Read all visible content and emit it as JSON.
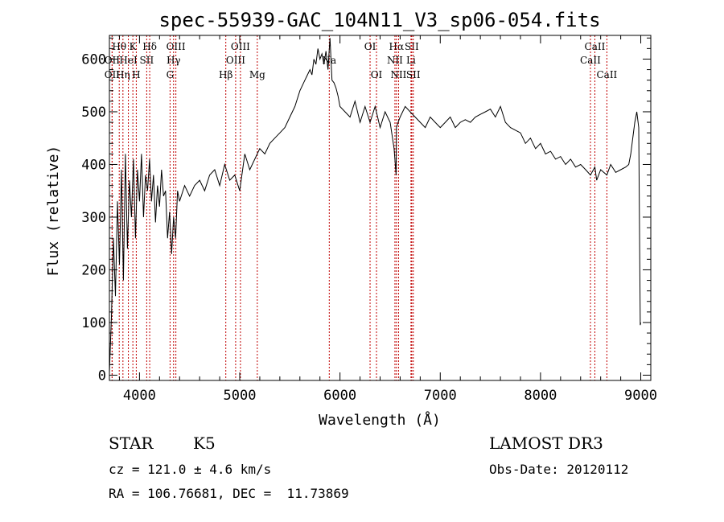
{
  "chart_data": {
    "type": "line",
    "title": "spec-55939-GAC_104N11_V3_sp06-054.fits",
    "xlabel": "Wavelength (Å)",
    "ylabel": "Flux (relative)",
    "xlim": [
      3700,
      9100
    ],
    "ylim": [
      -10,
      645
    ],
    "xticks": [
      4000,
      5000,
      6000,
      7000,
      8000,
      9000
    ],
    "yticks": [
      0,
      100,
      200,
      300,
      400,
      500,
      600
    ],
    "grid": false,
    "series": [
      {
        "name": "flux",
        "color": "#000000",
        "x": [
          3700,
          3720,
          3740,
          3760,
          3780,
          3800,
          3820,
          3840,
          3860,
          3880,
          3900,
          3920,
          3940,
          3960,
          3980,
          4000,
          4020,
          4040,
          4060,
          4080,
          4100,
          4120,
          4140,
          4160,
          4180,
          4200,
          4220,
          4240,
          4260,
          4280,
          4300,
          4320,
          4340,
          4360,
          4380,
          4400,
          4450,
          4500,
          4550,
          4600,
          4650,
          4700,
          4750,
          4800,
          4850,
          4900,
          4950,
          5000,
          5050,
          5100,
          5150,
          5200,
          5250,
          5300,
          5350,
          5400,
          5450,
          5500,
          5550,
          5600,
          5650,
          5700,
          5720,
          5740,
          5760,
          5780,
          5800,
          5820,
          5840,
          5860,
          5880,
          5900,
          5920,
          5940,
          5960,
          5980,
          6000,
          6050,
          6100,
          6150,
          6200,
          6250,
          6300,
          6350,
          6400,
          6450,
          6500,
          6540,
          6560,
          6563,
          6580,
          6600,
          6650,
          6700,
          6750,
          6800,
          6850,
          6900,
          6950,
          7000,
          7050,
          7100,
          7150,
          7200,
          7250,
          7300,
          7350,
          7400,
          7450,
          7500,
          7550,
          7600,
          7650,
          7700,
          7750,
          7800,
          7850,
          7900,
          7950,
          8000,
          8050,
          8100,
          8150,
          8200,
          8250,
          8300,
          8350,
          8400,
          8450,
          8498,
          8542,
          8560,
          8600,
          8662,
          8700,
          8750,
          8800,
          8850,
          8880,
          8900,
          8920,
          8940,
          8960,
          8980,
          8995,
          9000
        ],
        "values": [
          5,
          110,
          260,
          150,
          330,
          210,
          390,
          180,
          420,
          240,
          370,
          300,
          410,
          260,
          390,
          330,
          420,
          300,
          380,
          350,
          410,
          330,
          380,
          290,
          360,
          320,
          390,
          340,
          350,
          260,
          310,
          230,
          300,
          260,
          350,
          330,
          360,
          340,
          360,
          370,
          350,
          380,
          390,
          360,
          400,
          370,
          380,
          350,
          420,
          390,
          410,
          430,
          420,
          440,
          450,
          460,
          470,
          490,
          510,
          540,
          560,
          580,
          570,
          600,
          590,
          620,
          600,
          610,
          590,
          615,
          580,
          640,
          560,
          555,
          545,
          530,
          510,
          500,
          490,
          520,
          480,
          510,
          480,
          510,
          470,
          500,
          480,
          430,
          380,
          470,
          480,
          490,
          510,
          500,
          490,
          480,
          470,
          490,
          480,
          470,
          480,
          490,
          470,
          480,
          485,
          480,
          490,
          495,
          500,
          505,
          490,
          510,
          480,
          470,
          465,
          460,
          440,
          450,
          430,
          440,
          420,
          425,
          410,
          415,
          400,
          410,
          395,
          400,
          390,
          380,
          395,
          370,
          390,
          380,
          400,
          385,
          390,
          395,
          400,
          420,
          450,
          480,
          500,
          470,
          95,
          100
        ]
      }
    ],
    "spectral_lines": [
      {
        "name": "Hθ",
        "wavelength": 3798,
        "row": 1
      },
      {
        "name": "OII",
        "wavelength": 3727,
        "row": 2
      },
      {
        "name": "OII",
        "wavelength": 3727,
        "row": 3
      },
      {
        "name": "Hη",
        "wavelength": 3835,
        "row": 3
      },
      {
        "name": "K",
        "wavelength": 3934,
        "row": 1
      },
      {
        "name": "HeI",
        "wavelength": 3889,
        "row": 2
      },
      {
        "name": "H",
        "wavelength": 3968,
        "row": 3
      },
      {
        "name": "SII",
        "wavelength": 4072,
        "row": 2
      },
      {
        "name": "Hδ",
        "wavelength": 4102,
        "row": 1
      },
      {
        "name": "OIII",
        "wavelength": 4363,
        "row": 1
      },
      {
        "name": "Hγ",
        "wavelength": 4340,
        "row": 2
      },
      {
        "name": "G",
        "wavelength": 4305,
        "row": 3
      },
      {
        "name": "Hβ",
        "wavelength": 4861,
        "row": 3
      },
      {
        "name": "OIII",
        "wavelength": 5007,
        "row": 1
      },
      {
        "name": "OIII",
        "wavelength": 4959,
        "row": 2
      },
      {
        "name": "Mg",
        "wavelength": 5175,
        "row": 3
      },
      {
        "name": "Na",
        "wavelength": 5893,
        "row": 2
      },
      {
        "name": "OI",
        "wavelength": 6300,
        "row": 1
      },
      {
        "name": "OI",
        "wavelength": 6364,
        "row": 3
      },
      {
        "name": "Hα",
        "wavelength": 6563,
        "row": 1
      },
      {
        "name": "NII",
        "wavelength": 6548,
        "row": 2
      },
      {
        "name": "NII",
        "wavelength": 6584,
        "row": 3
      },
      {
        "name": "SII",
        "wavelength": 6716,
        "row": 1
      },
      {
        "name": "Li",
        "wavelength": 6708,
        "row": 2
      },
      {
        "name": "SII",
        "wavelength": 6731,
        "row": 3
      },
      {
        "name": "CaII",
        "wavelength": 8542,
        "row": 1
      },
      {
        "name": "CaII",
        "wavelength": 8498,
        "row": 2
      },
      {
        "name": "CaII",
        "wavelength": 8662,
        "row": 3
      }
    ]
  },
  "info": {
    "object_class": "STAR",
    "subclass": "K5",
    "survey": "LAMOST DR3",
    "redshift": "cz = 121.0 ± 4.6 km/s",
    "obs_date": "Obs-Date: 20120112",
    "coords": "RA = 106.76681, DEC =  11.73869"
  }
}
